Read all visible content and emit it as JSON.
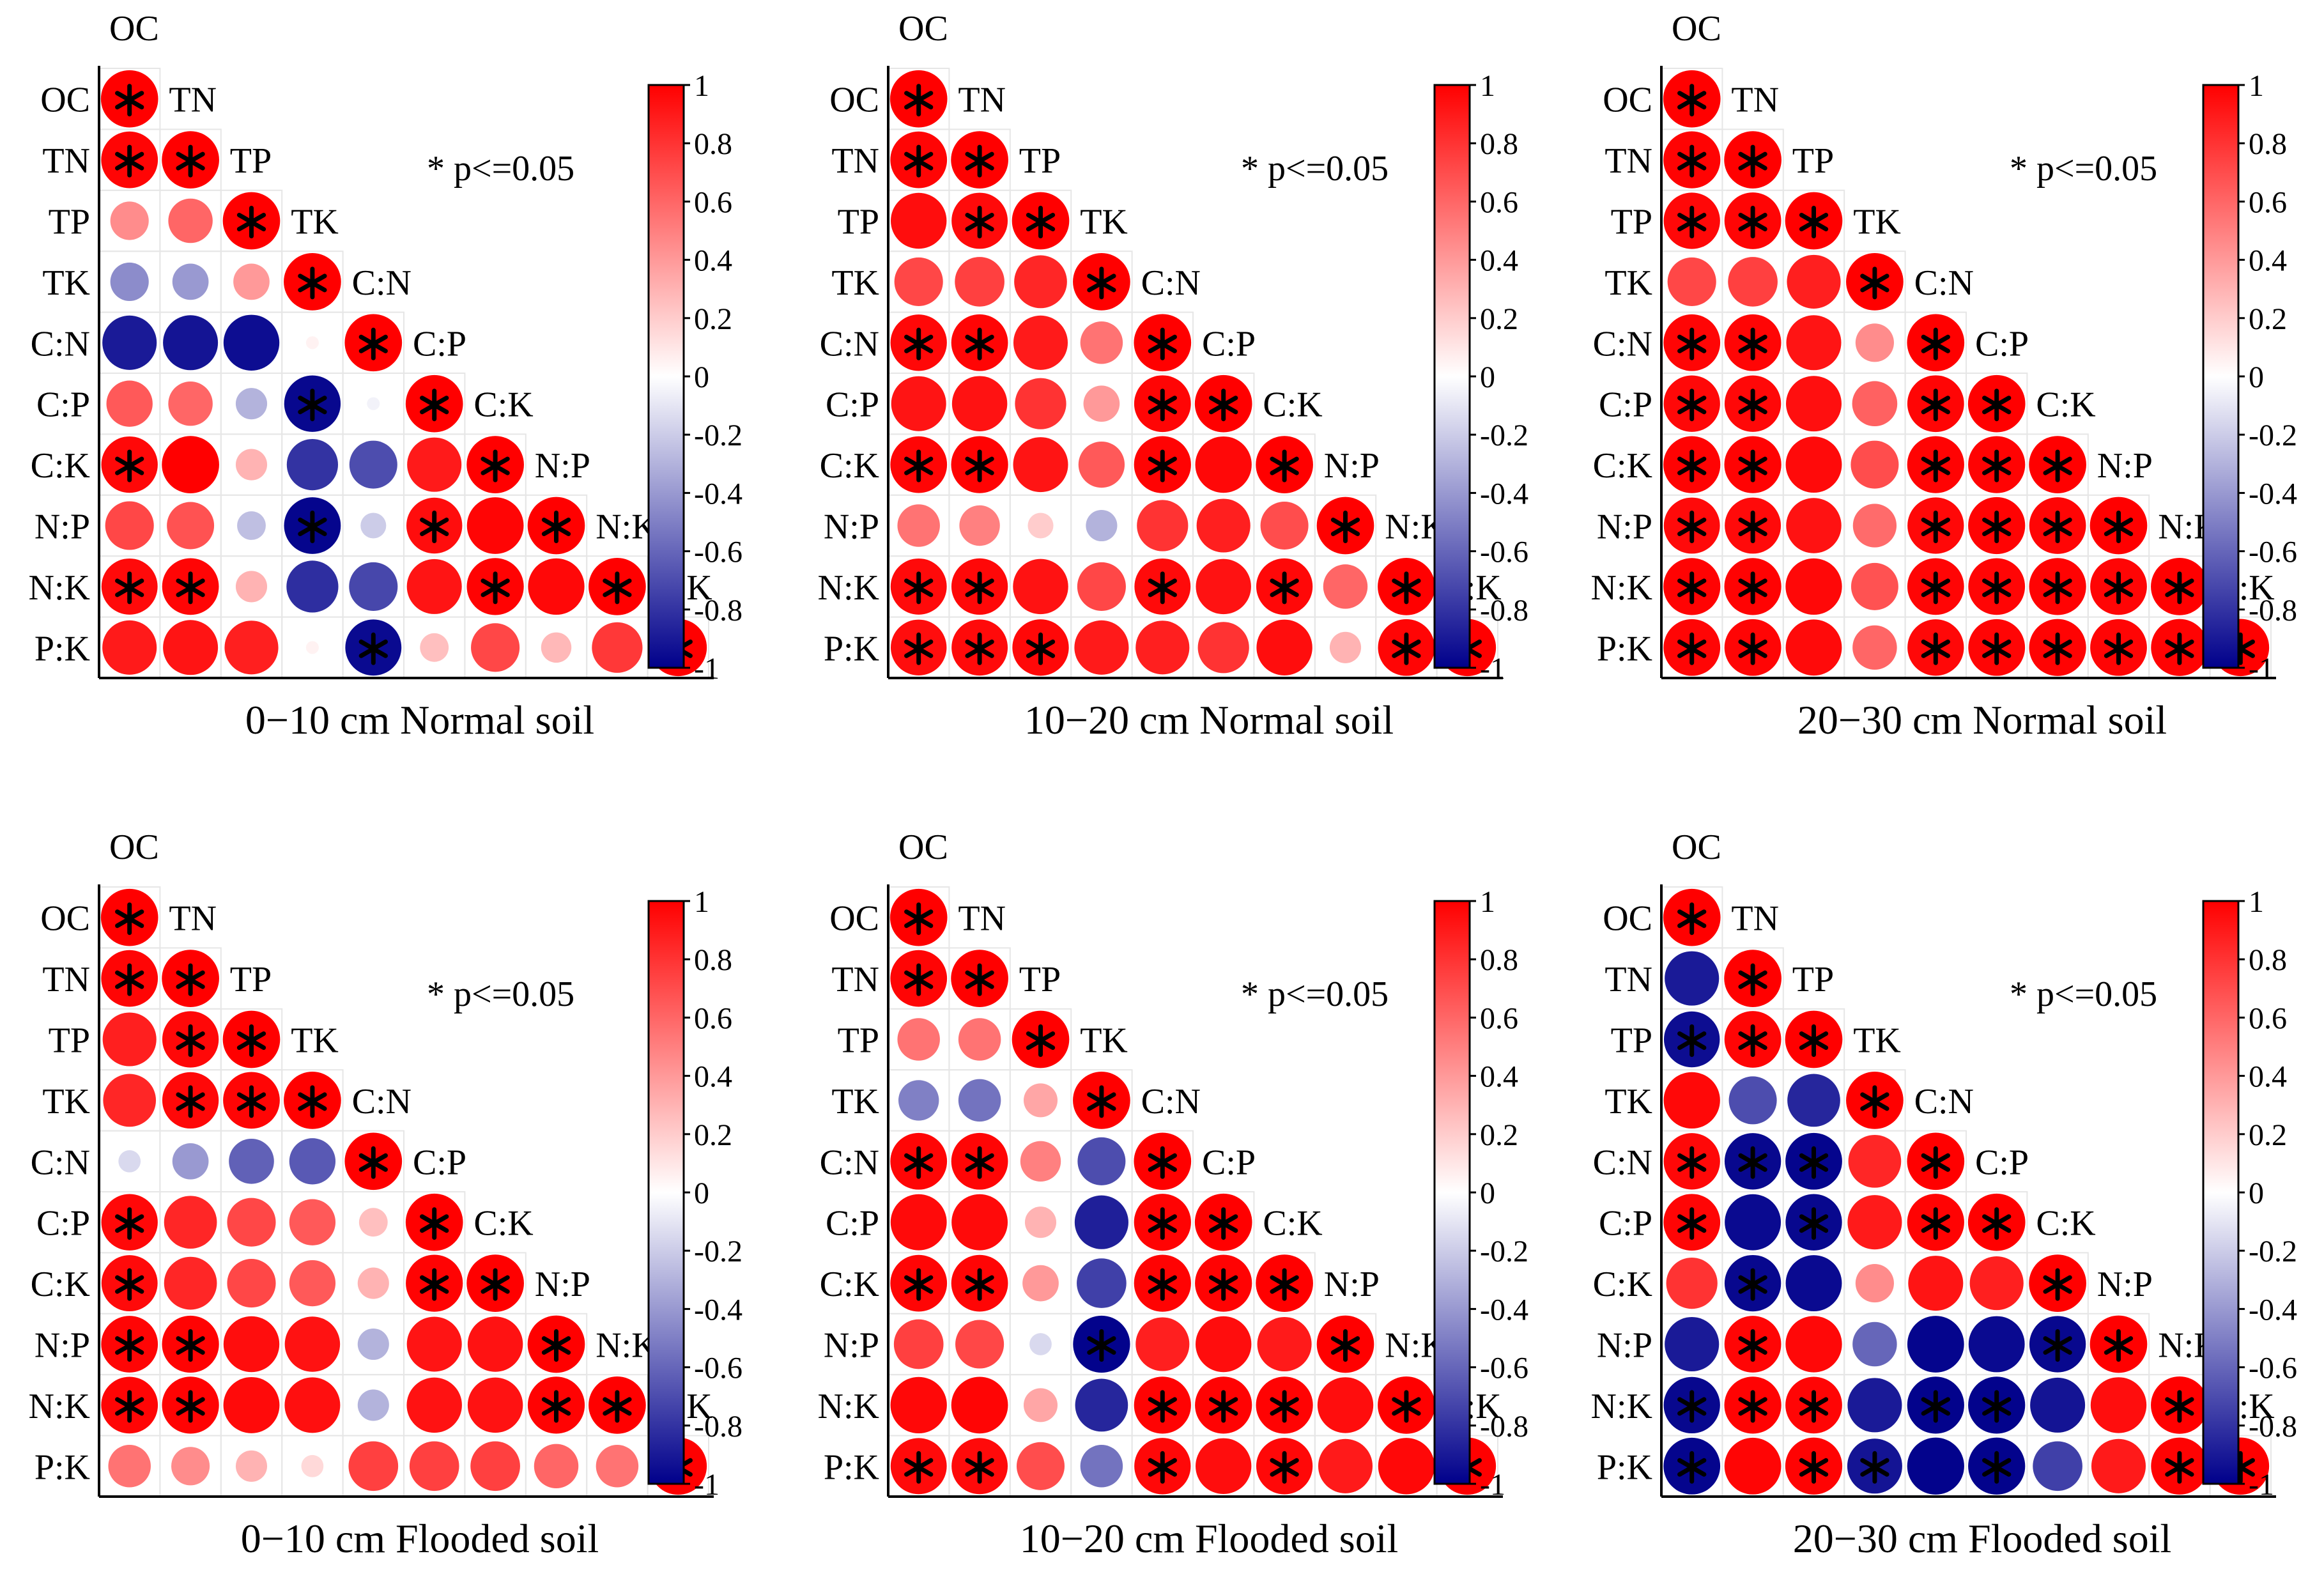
{
  "figure": {
    "variables": [
      "OC",
      "TN",
      "TP",
      "TK",
      "C:N",
      "C:P",
      "C:K",
      "N:P",
      "N:K",
      "P:K"
    ],
    "significance_note": "* p<=0.05",
    "significance_marker": "*",
    "colorbar_ticks": [
      "1",
      "0.8",
      "0.6",
      "0.4",
      "0.2",
      "0",
      "-0.2",
      "-0.4",
      "-0.6",
      "-0.8",
      "-1"
    ],
    "colors": {
      "negative": "#00008B",
      "zero": "#FFFFFF",
      "positive": "#FF0000",
      "grid": "#E6E6E6",
      "axis": "#000000"
    }
  },
  "chart_data": [
    {
      "type": "heatmap",
      "subtype": "correlation-circles-lower-triangle",
      "title": "0−10 cm  Normal soil",
      "colorbar_range": [
        -1,
        1
      ],
      "values": [
        [
          1
        ],
        [
          0.98,
          1
        ],
        [
          0.45,
          0.6,
          1
        ],
        [
          -0.45,
          -0.4,
          0.4,
          1
        ],
        [
          -0.9,
          -0.92,
          -0.95,
          0.05,
          1
        ],
        [
          0.65,
          0.6,
          -0.3,
          -0.97,
          -0.05,
          1
        ],
        [
          0.97,
          1,
          0.3,
          -0.8,
          -0.7,
          0.9,
          1
        ],
        [
          0.72,
          0.68,
          -0.25,
          -0.98,
          -0.2,
          0.95,
          0.98,
          1
        ],
        [
          0.96,
          0.98,
          0.3,
          -0.82,
          -0.72,
          0.92,
          0.99,
          0.97,
          1
        ],
        [
          0.9,
          0.92,
          0.88,
          0.05,
          -0.96,
          0.25,
          0.72,
          0.28,
          0.78,
          1
        ]
      ],
      "significant": [
        [
          1
        ],
        [
          1,
          1
        ],
        [
          0,
          0,
          1
        ],
        [
          0,
          0,
          0,
          1
        ],
        [
          0,
          0,
          0,
          0,
          1
        ],
        [
          0,
          0,
          0,
          1,
          0,
          1
        ],
        [
          1,
          0,
          0,
          0,
          0,
          0,
          1
        ],
        [
          0,
          0,
          0,
          1,
          0,
          1,
          0,
          1
        ],
        [
          1,
          1,
          0,
          0,
          0,
          0,
          1,
          0,
          1
        ],
        [
          0,
          0,
          0,
          0,
          1,
          0,
          0,
          0,
          0,
          1
        ]
      ]
    },
    {
      "type": "heatmap",
      "subtype": "correlation-circles-lower-triangle",
      "title": "10−20 cm  Normal soil",
      "colorbar_range": [
        -1,
        1
      ],
      "values": [
        [
          1
        ],
        [
          0.98,
          1
        ],
        [
          0.95,
          0.96,
          1
        ],
        [
          0.72,
          0.75,
          0.85,
          1
        ],
        [
          0.97,
          0.98,
          0.9,
          0.55,
          1
        ],
        [
          0.92,
          0.93,
          0.8,
          0.4,
          0.98,
          1
        ],
        [
          0.98,
          0.99,
          0.92,
          0.65,
          0.99,
          0.97,
          1
        ],
        [
          0.55,
          0.5,
          0.2,
          -0.3,
          0.8,
          0.88,
          0.7,
          1
        ],
        [
          0.96,
          0.97,
          0.93,
          0.72,
          0.96,
          0.93,
          0.97,
          0.6,
          1
        ],
        [
          0.95,
          0.96,
          0.97,
          0.9,
          0.88,
          0.8,
          0.95,
          0.3,
          0.98,
          1
        ]
      ],
      "significant": [
        [
          1
        ],
        [
          1,
          1
        ],
        [
          0,
          1,
          1
        ],
        [
          0,
          0,
          0,
          1
        ],
        [
          1,
          1,
          0,
          0,
          1
        ],
        [
          0,
          0,
          0,
          0,
          1,
          1
        ],
        [
          1,
          1,
          0,
          0,
          1,
          0,
          1
        ],
        [
          0,
          0,
          0,
          0,
          0,
          0,
          0,
          1
        ],
        [
          1,
          1,
          0,
          0,
          1,
          0,
          1,
          0,
          1
        ],
        [
          1,
          1,
          1,
          0,
          0,
          0,
          0,
          0,
          1,
          1
        ]
      ]
    },
    {
      "type": "heatmap",
      "subtype": "correlation-circles-lower-triangle",
      "title": "20−30 cm  Normal soil",
      "colorbar_range": [
        -1,
        1
      ],
      "values": [
        [
          1
        ],
        [
          0.99,
          1
        ],
        [
          0.97,
          0.98,
          1
        ],
        [
          0.72,
          0.75,
          0.88,
          1
        ],
        [
          0.98,
          0.98,
          0.92,
          0.45,
          1
        ],
        [
          0.97,
          0.97,
          0.94,
          0.62,
          0.98,
          1
        ],
        [
          0.99,
          0.99,
          0.96,
          0.7,
          0.99,
          0.99,
          1
        ],
        [
          0.96,
          0.96,
          0.93,
          0.58,
          0.97,
          0.99,
          0.98,
          1
        ],
        [
          0.99,
          0.99,
          0.97,
          0.68,
          0.98,
          0.98,
          0.99,
          0.98,
          1
        ],
        [
          0.98,
          0.98,
          0.96,
          0.6,
          0.97,
          0.98,
          0.99,
          0.98,
          0.99,
          1
        ]
      ],
      "significant": [
        [
          1
        ],
        [
          1,
          1
        ],
        [
          1,
          1,
          1
        ],
        [
          0,
          0,
          0,
          1
        ],
        [
          1,
          1,
          0,
          0,
          1
        ],
        [
          1,
          1,
          0,
          0,
          1,
          1
        ],
        [
          1,
          1,
          0,
          0,
          1,
          1,
          1
        ],
        [
          1,
          1,
          0,
          0,
          1,
          1,
          1,
          1
        ],
        [
          1,
          1,
          0,
          0,
          1,
          1,
          1,
          1,
          1
        ],
        [
          1,
          1,
          0,
          0,
          1,
          1,
          1,
          1,
          1,
          1
        ]
      ]
    },
    {
      "type": "heatmap",
      "subtype": "correlation-circles-lower-triangle",
      "title": "0−10 cm  Flooded soil",
      "colorbar_range": [
        -1,
        1
      ],
      "values": [
        [
          1
        ],
        [
          0.98,
          1
        ],
        [
          0.88,
          0.97,
          1
        ],
        [
          0.85,
          0.97,
          0.98,
          1
        ],
        [
          -0.15,
          -0.4,
          -0.62,
          -0.65,
          1
        ],
        [
          0.97,
          0.85,
          0.72,
          0.65,
          0.25,
          1
        ],
        [
          0.96,
          0.85,
          0.72,
          0.65,
          0.3,
          0.99,
          1
        ],
        [
          0.98,
          0.99,
          0.95,
          0.93,
          -0.3,
          0.92,
          0.93,
          1
        ],
        [
          0.98,
          0.99,
          0.96,
          0.94,
          -0.3,
          0.93,
          0.93,
          0.99,
          1
        ],
        [
          0.55,
          0.45,
          0.3,
          0.15,
          0.75,
          0.75,
          0.75,
          0.6,
          0.55,
          1
        ]
      ],
      "significant": [
        [
          1
        ],
        [
          1,
          1
        ],
        [
          0,
          1,
          1
        ],
        [
          0,
          1,
          1,
          1
        ],
        [
          0,
          0,
          0,
          0,
          1
        ],
        [
          1,
          0,
          0,
          0,
          0,
          1
        ],
        [
          1,
          0,
          0,
          0,
          0,
          1,
          1
        ],
        [
          1,
          1,
          0,
          0,
          0,
          0,
          0,
          1
        ],
        [
          1,
          1,
          0,
          0,
          0,
          0,
          0,
          1,
          1
        ],
        [
          0,
          0,
          0,
          0,
          0,
          0,
          0,
          0,
          0,
          1
        ]
      ]
    },
    {
      "type": "heatmap",
      "subtype": "correlation-circles-lower-triangle",
      "title": "10−20 cm  Flooded soil",
      "colorbar_range": [
        -1,
        1
      ],
      "values": [
        [
          1
        ],
        [
          0.98,
          1
        ],
        [
          0.55,
          0.55,
          1
        ],
        [
          -0.5,
          -0.55,
          0.35,
          1
        ],
        [
          0.98,
          0.98,
          0.5,
          -0.7,
          1
        ],
        [
          0.96,
          0.96,
          0.3,
          -0.88,
          0.99,
          1
        ],
        [
          0.98,
          0.98,
          0.4,
          -0.75,
          0.99,
          0.99,
          1
        ],
        [
          0.75,
          0.72,
          -0.15,
          -0.99,
          0.88,
          0.95,
          0.9,
          1
        ],
        [
          0.97,
          0.98,
          0.35,
          -0.85,
          0.99,
          0.99,
          0.99,
          0.95,
          1
        ],
        [
          0.96,
          0.96,
          0.7,
          -0.55,
          0.97,
          0.95,
          0.97,
          0.9,
          0.97,
          1
        ]
      ],
      "significant": [
        [
          1
        ],
        [
          1,
          1
        ],
        [
          0,
          0,
          1
        ],
        [
          0,
          0,
          0,
          1
        ],
        [
          1,
          1,
          0,
          0,
          1
        ],
        [
          0,
          0,
          0,
          0,
          1,
          1
        ],
        [
          1,
          1,
          0,
          0,
          1,
          1,
          1
        ],
        [
          0,
          0,
          0,
          1,
          0,
          0,
          0,
          1
        ],
        [
          0,
          0,
          0,
          0,
          1,
          1,
          1,
          0,
          1
        ],
        [
          1,
          1,
          0,
          0,
          1,
          0,
          1,
          0,
          0,
          1
        ]
      ]
    },
    {
      "type": "heatmap",
      "subtype": "correlation-circles-lower-triangle",
      "title": "20−30 cm  Flooded soil",
      "colorbar_range": [
        -1,
        1
      ],
      "values": [
        [
          1
        ],
        [
          -0.9,
          1
        ],
        [
          -0.95,
          0.98,
          1
        ],
        [
          0.97,
          -0.7,
          -0.85,
          1
        ],
        [
          0.97,
          -0.97,
          -0.98,
          0.85,
          1
        ],
        [
          0.98,
          -0.96,
          -0.97,
          0.9,
          0.99,
          1
        ],
        [
          0.8,
          -0.97,
          -0.96,
          0.45,
          0.92,
          0.88,
          1
        ],
        [
          -0.9,
          0.98,
          0.97,
          -0.6,
          -0.98,
          -0.96,
          -0.97,
          1
        ],
        [
          -0.97,
          0.99,
          0.98,
          -0.9,
          -0.99,
          -0.99,
          -0.92,
          0.95,
          1
        ],
        [
          -0.98,
          0.98,
          0.99,
          -0.92,
          -0.99,
          -0.99,
          -0.75,
          0.9,
          0.99,
          1
        ]
      ],
      "significant": [
        [
          1
        ],
        [
          0,
          1
        ],
        [
          1,
          1,
          1
        ],
        [
          0,
          0,
          0,
          1
        ],
        [
          1,
          1,
          1,
          0,
          1
        ],
        [
          1,
          0,
          1,
          0,
          1,
          1
        ],
        [
          0,
          1,
          0,
          0,
          0,
          0,
          1
        ],
        [
          0,
          1,
          0,
          0,
          0,
          0,
          1,
          1
        ],
        [
          1,
          1,
          1,
          0,
          1,
          1,
          0,
          0,
          1
        ],
        [
          1,
          0,
          1,
          1,
          0,
          1,
          0,
          0,
          1,
          1
        ]
      ]
    }
  ]
}
